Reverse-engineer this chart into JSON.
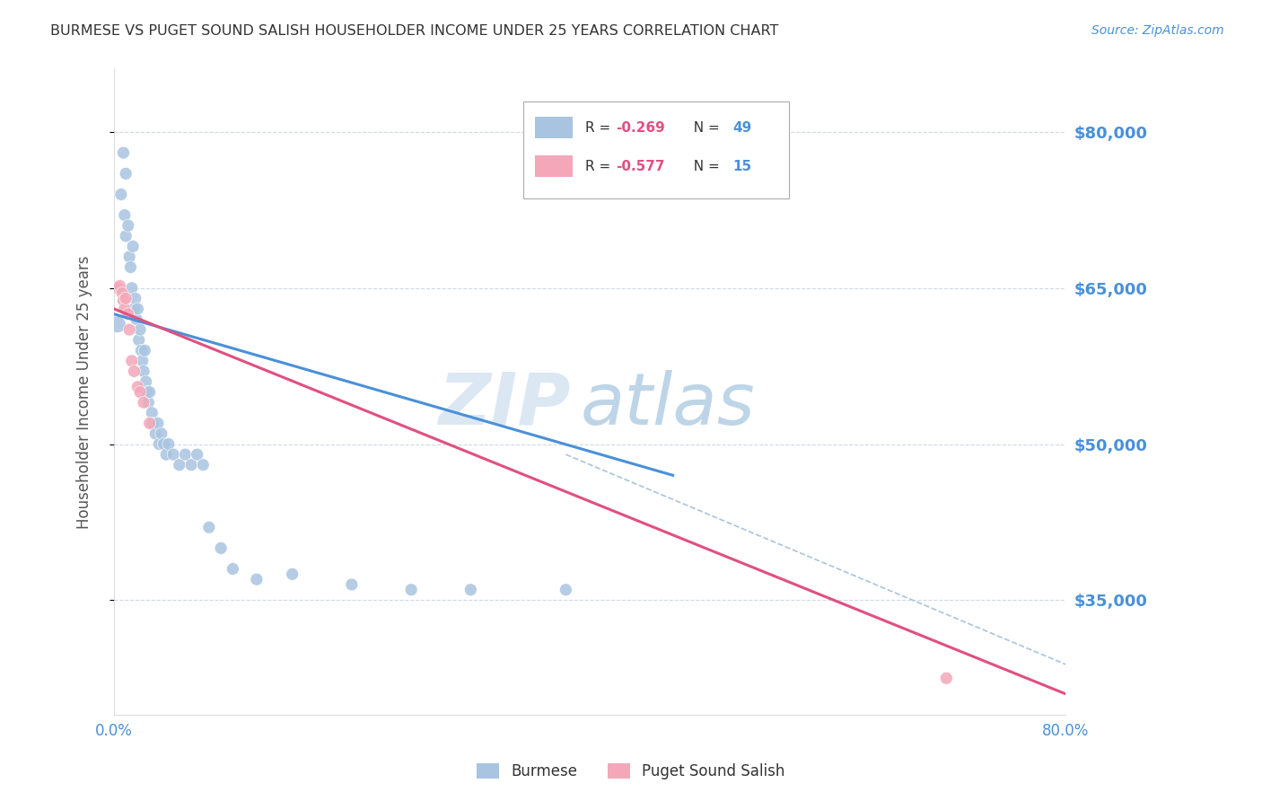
{
  "title": "BURMESE VS PUGET SOUND SALISH HOUSEHOLDER INCOME UNDER 25 YEARS CORRELATION CHART",
  "source": "Source: ZipAtlas.com",
  "ylabel": "Householder Income Under 25 years",
  "xlim": [
    0.0,
    0.8
  ],
  "ylim": [
    24000,
    86000
  ],
  "yticks": [
    35000,
    50000,
    65000,
    80000
  ],
  "ytick_labels": [
    "$35,000",
    "$50,000",
    "$65,000",
    "$80,000"
  ],
  "xticks": [
    0.0,
    0.1,
    0.2,
    0.3,
    0.4,
    0.5,
    0.6,
    0.7,
    0.8
  ],
  "xtick_labels": [
    "0.0%",
    "",
    "",
    "",
    "",
    "",
    "",
    "",
    "80.0%"
  ],
  "burmese_color": "#a8c4e0",
  "puget_color": "#f4a7b9",
  "burmese_line_color": "#4a90d9",
  "puget_line_color": "#e05080",
  "dashed_line_color": "#aac4dc",
  "watermark_zip": "ZIP",
  "watermark_atlas": "atlas",
  "burmese_x": [
    0.003,
    0.006,
    0.008,
    0.009,
    0.01,
    0.01,
    0.012,
    0.013,
    0.014,
    0.015,
    0.016,
    0.017,
    0.018,
    0.019,
    0.02,
    0.021,
    0.022,
    0.023,
    0.024,
    0.025,
    0.026,
    0.027,
    0.028,
    0.029,
    0.03,
    0.032,
    0.033,
    0.035,
    0.037,
    0.038,
    0.04,
    0.042,
    0.044,
    0.046,
    0.05,
    0.055,
    0.06,
    0.065,
    0.07,
    0.075,
    0.08,
    0.09,
    0.1,
    0.12,
    0.15,
    0.2,
    0.25,
    0.3,
    0.38
  ],
  "burmese_y": [
    61500,
    74000,
    78000,
    72000,
    76000,
    70000,
    71000,
    68000,
    67000,
    65000,
    69000,
    63000,
    64000,
    62000,
    63000,
    60000,
    61000,
    59000,
    58000,
    57000,
    59000,
    56000,
    55000,
    54000,
    55000,
    53000,
    52000,
    51000,
    52000,
    50000,
    51000,
    50000,
    49000,
    50000,
    49000,
    48000,
    49000,
    48000,
    49000,
    48000,
    42000,
    40000,
    38000,
    37000,
    37500,
    36500,
    36000,
    36000,
    36000
  ],
  "burmese_sizes": [
    180,
    100,
    100,
    100,
    100,
    100,
    100,
    100,
    100,
    100,
    100,
    100,
    100,
    100,
    100,
    100,
    100,
    100,
    100,
    100,
    100,
    100,
    100,
    100,
    100,
    100,
    100,
    100,
    100,
    100,
    100,
    100,
    100,
    100,
    100,
    100,
    100,
    100,
    100,
    100,
    100,
    100,
    100,
    100,
    100,
    100,
    100,
    100,
    100
  ],
  "puget_x": [
    0.003,
    0.005,
    0.007,
    0.008,
    0.009,
    0.01,
    0.012,
    0.013,
    0.015,
    0.017,
    0.02,
    0.022,
    0.025,
    0.03,
    0.7
  ],
  "puget_y": [
    65000,
    65200,
    64500,
    63800,
    63000,
    64000,
    62500,
    61000,
    58000,
    57000,
    55500,
    55000,
    54000,
    52000,
    27500
  ],
  "puget_sizes": [
    100,
    100,
    100,
    100,
    100,
    100,
    100,
    100,
    100,
    100,
    100,
    100,
    100,
    100,
    100
  ],
  "blue_line_x": [
    0.0,
    0.47
  ],
  "blue_line_y": [
    62500,
    47000
  ],
  "pink_line_x": [
    0.0,
    0.8
  ],
  "pink_line_y": [
    63000,
    26000
  ],
  "dashed_line_x": [
    0.38,
    0.88
  ],
  "dashed_line_y": [
    49000,
    25000
  ],
  "background_color": "#ffffff",
  "grid_color": "#d0d8e8",
  "title_color": "#333333",
  "axis_label_color": "#555555",
  "tick_label_color": "#4a90d9"
}
